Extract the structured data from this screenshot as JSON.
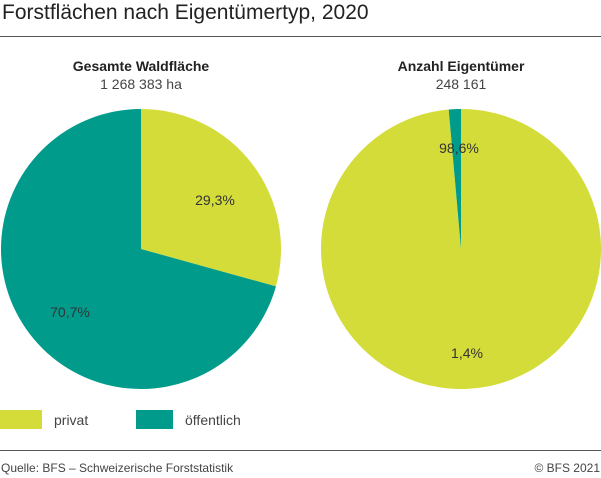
{
  "chart_data": {
    "type": "pie",
    "title": "Forstflächen nach Eigentümertyp, 2020",
    "colors": {
      "privat": "#d4dc3a",
      "öffentlich": "#009b8b"
    },
    "legend": [
      {
        "label": "privat",
        "color": "#d4dc3a"
      },
      {
        "label": "öffentlich",
        "color": "#009b8b"
      }
    ],
    "legend_placement": "bottom-left",
    "pies": [
      {
        "title": "Gesamte Waldfläche",
        "subtitle": "1 268 383 ha",
        "slices": [
          {
            "category": "privat",
            "value": 29.3,
            "label": "29,3%"
          },
          {
            "category": "öffentlich",
            "value": 70.7,
            "label": "70,7%"
          }
        ]
      },
      {
        "title": "Anzahl Eigentümer",
        "subtitle": "248 161",
        "slices": [
          {
            "category": "privat",
            "value": 98.6,
            "label": "98,6%"
          },
          {
            "category": "öffentlich",
            "value": 1.4,
            "label": "1,4%"
          }
        ]
      }
    ]
  },
  "footer": {
    "source": "Quelle: BFS – Schweizerische Forststatistik",
    "copyright": "© BFS 2021"
  }
}
